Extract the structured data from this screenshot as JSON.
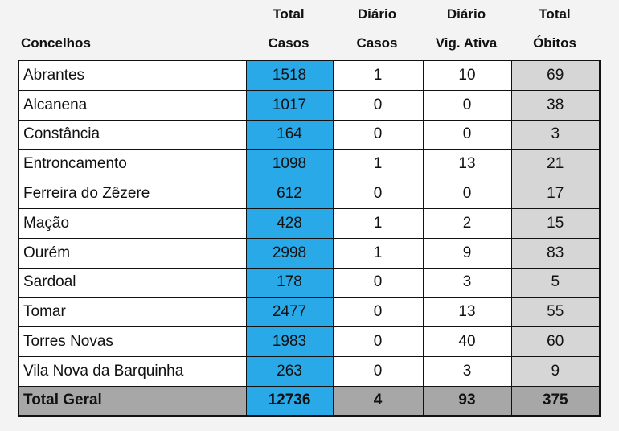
{
  "headers": {
    "concelhos": "Concelhos",
    "total_casos": [
      "Total",
      "Casos"
    ],
    "diario_casos": [
      "Diário",
      "Casos"
    ],
    "diario_vig": [
      "Diário",
      "Vig. Ativa"
    ],
    "total_obitos": [
      "Total",
      "Óbitos"
    ]
  },
  "rows": [
    {
      "name": "Abrantes",
      "total": "1518",
      "diario": "1",
      "vig": "10",
      "obitos": "69"
    },
    {
      "name": "Alcanena",
      "total": "1017",
      "diario": "0",
      "vig": "0",
      "obitos": "38"
    },
    {
      "name": "Constância",
      "total": "164",
      "diario": "0",
      "vig": "0",
      "obitos": "3"
    },
    {
      "name": "Entroncamento",
      "total": "1098",
      "diario": "1",
      "vig": "13",
      "obitos": "21"
    },
    {
      "name": "Ferreira do Zêzere",
      "total": "612",
      "diario": "0",
      "vig": "0",
      "obitos": "17"
    },
    {
      "name": "Mação",
      "total": "428",
      "diario": "1",
      "vig": "2",
      "obitos": "15"
    },
    {
      "name": "Ourém",
      "total": "2998",
      "diario": "1",
      "vig": "9",
      "obitos": "83"
    },
    {
      "name": "Sardoal",
      "total": "178",
      "diario": "0",
      "vig": "3",
      "obitos": "5"
    },
    {
      "name": "Tomar",
      "total": "2477",
      "diario": "0",
      "vig": "13",
      "obitos": "55"
    },
    {
      "name": "Torres Novas",
      "total": "1983",
      "diario": "0",
      "vig": "40",
      "obitos": "60"
    },
    {
      "name": "Vila Nova da Barquinha",
      "total": "263",
      "diario": "0",
      "vig": "3",
      "obitos": "9"
    }
  ],
  "total_row": {
    "name": "Total Geral",
    "total": "12736",
    "diario": "4",
    "vig": "93",
    "obitos": "375"
  },
  "colors": {
    "blue": "#29a9e8",
    "grey": "#d6d6d6",
    "total_grey": "#a7a7a7"
  }
}
